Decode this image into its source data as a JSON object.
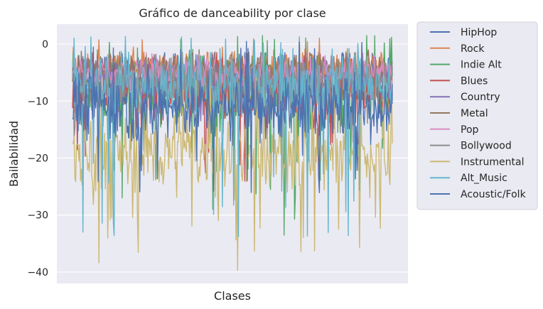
{
  "chart_data": {
    "type": "line",
    "title": "Gráfico de danceability por clase",
    "xlabel": "Clases",
    "ylabel": "Bailabilidad",
    "ylim": [
      -42,
      3.5
    ],
    "yticks": [
      0,
      -10,
      -20,
      -30,
      -40
    ],
    "ytick_labels": [
      "0",
      "−10",
      "−20",
      "−30",
      "−40"
    ],
    "x_tick_labels": [],
    "grid": true,
    "legend_position": "outside-right-top",
    "background_color": "#eaeaf2",
    "n_points": 400,
    "series": [
      {
        "name": "HipHop",
        "color": "#4c72b0",
        "center": -6,
        "spread": 3,
        "min": -14,
        "max": -1.5
      },
      {
        "name": "Rock",
        "color": "#dd8452",
        "center": -4,
        "spread": 2,
        "min": -12,
        "max": 1.5
      },
      {
        "name": "Indie Alt",
        "color": "#55a868",
        "center": -8,
        "spread": 6,
        "min": -35,
        "max": 1.5
      },
      {
        "name": "Blues",
        "color": "#c44e52",
        "center": -8,
        "spread": 4,
        "min": -25,
        "max": -1.5
      },
      {
        "name": "Country",
        "color": "#8172b3",
        "center": -6,
        "spread": 3,
        "min": -15,
        "max": -1.5
      },
      {
        "name": "Metal",
        "color": "#937860",
        "center": -4.5,
        "spread": 2,
        "min": -12,
        "max": -1
      },
      {
        "name": "Pop",
        "color": "#da8bc3",
        "center": -5,
        "spread": 2,
        "min": -12,
        "max": -1.5
      },
      {
        "name": "Bollywood",
        "color": "#8c8c8c",
        "center": -7,
        "spread": 3,
        "min": -18,
        "max": -2
      },
      {
        "name": "Instrumental",
        "color": "#ccb974",
        "center": -19,
        "spread": 5,
        "min": -40,
        "max": -5
      },
      {
        "name": "Alt_Music",
        "color": "#64b5cd",
        "center": -7,
        "spread": 4,
        "min": -34,
        "max": 1.5
      },
      {
        "name": "Acoustic/Folk",
        "color": "#4c72b0",
        "center": -11,
        "spread": 4,
        "min": -27,
        "max": 0.5
      }
    ]
  }
}
